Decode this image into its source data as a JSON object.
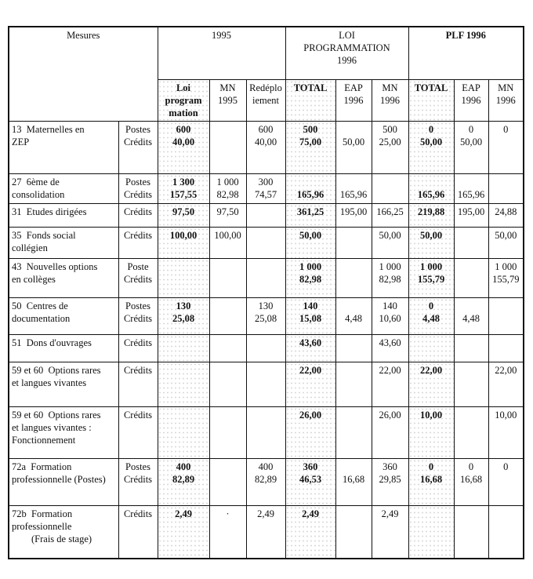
{
  "header": {
    "mesures": "Mesures",
    "group_1995": "1995",
    "group_loi": [
      "LOI",
      "PROGRAMMATION",
      "1996"
    ],
    "group_plf": "PLF 1996",
    "subcolumns": [
      {
        "lines": [
          "Loi",
          "program",
          "mation"
        ],
        "bold": true
      },
      {
        "lines": [
          "MN",
          "1995"
        ],
        "bold": false
      },
      {
        "lines": [
          "Redéplo",
          "iement"
        ],
        "bold": false
      },
      {
        "lines": [
          "TOTAL"
        ],
        "bold": true
      },
      {
        "lines": [
          "EAP",
          "1996"
        ],
        "bold": false
      },
      {
        "lines": [
          "MN",
          "1996"
        ],
        "bold": false
      },
      {
        "lines": [
          "TOTAL"
        ],
        "bold": true
      },
      {
        "lines": [
          "EAP",
          "1996"
        ],
        "bold": false
      },
      {
        "lines": [
          "MN",
          "1996"
        ],
        "bold": false
      }
    ]
  },
  "rows": [
    {
      "label": [
        "13  Maternelles en",
        "ZEP"
      ],
      "type": [
        "Postes",
        "Crédits"
      ],
      "cells": [
        [
          "600",
          "40,00"
        ],
        [],
        [
          "600",
          "40,00"
        ],
        [
          "500",
          "75,00"
        ],
        [
          "",
          "50,00"
        ],
        [
          "500",
          "25,00"
        ],
        [
          "0",
          "50,00"
        ],
        [
          "0",
          "50,00"
        ],
        [
          "0"
        ]
      ]
    },
    {
      "label": [
        "27  6ème de",
        "consolidation"
      ],
      "type": [
        "Postes",
        "Crédits"
      ],
      "cells": [
        [
          "1 300",
          "157,55"
        ],
        [
          "1 000",
          "82,98"
        ],
        [
          "300",
          "74,57"
        ],
        [
          "",
          "165,96"
        ],
        [
          "",
          "165,96"
        ],
        [],
        [
          "",
          "165,96"
        ],
        [
          "",
          "165,96"
        ],
        []
      ]
    },
    {
      "label": [
        "31  Etudes dirigées"
      ],
      "type": [
        "Crédits"
      ],
      "cells": [
        [
          "97,50"
        ],
        [
          "97,50"
        ],
        [],
        [
          "361,25"
        ],
        [
          "195,00"
        ],
        [
          "166,25"
        ],
        [
          "219,88"
        ],
        [
          "195,00"
        ],
        [
          "24,88"
        ]
      ]
    },
    {
      "label": [
        "35  Fonds social",
        "collégien"
      ],
      "type": [
        "Crédits"
      ],
      "cells": [
        [
          "100,00"
        ],
        [
          "100,00"
        ],
        [],
        [
          "50,00"
        ],
        [],
        [
          "50,00"
        ],
        [
          "50,00"
        ],
        [],
        [
          "50,00"
        ]
      ]
    },
    {
      "label": [
        "43  Nouvelles options",
        "en collèges"
      ],
      "type": [
        "Poste",
        "Crédits"
      ],
      "cells": [
        [],
        [],
        [],
        [
          "1 000",
          "82,98"
        ],
        [],
        [
          "1 000",
          "82,98"
        ],
        [
          "1 000",
          "155,79"
        ],
        [],
        [
          "1 000",
          "155,79"
        ]
      ]
    },
    {
      "label": [
        "50  Centres de",
        "documentation"
      ],
      "type": [
        "Postes",
        "Crédits"
      ],
      "cells": [
        [
          "130",
          "25,08"
        ],
        [],
        [
          "130",
          "25,08"
        ],
        [
          "140",
          "15,08"
        ],
        [
          "",
          "4,48"
        ],
        [
          "140",
          "10,60"
        ],
        [
          "0",
          "4,48"
        ],
        [
          "",
          "4,48"
        ],
        []
      ]
    },
    {
      "label": [
        "51  Dons d'ouvrages"
      ],
      "type": [
        "Crédits"
      ],
      "cells": [
        [],
        [],
        [],
        [
          "43,60"
        ],
        [],
        [
          "43,60"
        ],
        [],
        [],
        []
      ]
    },
    {
      "label": [
        "59 et 60  Options rares",
        "et langues vivantes"
      ],
      "type": [
        "Crédits"
      ],
      "cells": [
        [],
        [],
        [],
        [
          "22,00"
        ],
        [],
        [
          "22,00"
        ],
        [
          "22,00"
        ],
        [],
        [
          "22,00"
        ]
      ]
    },
    {
      "label": [
        "59 et 60  Options rares",
        "et langues vivantes :",
        "Fonctionnement"
      ],
      "type": [
        "Crédits"
      ],
      "cells": [
        [],
        [],
        [],
        [
          "26,00"
        ],
        [],
        [
          "26,00"
        ],
        [
          "10,00"
        ],
        [],
        [
          "10,00"
        ]
      ]
    },
    {
      "label": [
        "72a  Formation",
        "professionnelle (Postes)"
      ],
      "type": [
        "Postes",
        "Crédits"
      ],
      "cells": [
        [
          "400",
          "82,89"
        ],
        [],
        [
          "400",
          "82,89"
        ],
        [
          "360",
          "46,53"
        ],
        [
          "",
          "16,68"
        ],
        [
          "360",
          "29,85"
        ],
        [
          "0",
          "16,68"
        ],
        [
          "0",
          "16,68"
        ],
        [
          "0"
        ]
      ]
    },
    {
      "label": [
        "72b  Formation",
        "professionnelle",
        "        (Frais de stage)"
      ],
      "type": [
        "Crédits"
      ],
      "cells": [
        [
          "2,49"
        ],
        [
          "·"
        ],
        [
          "2,49"
        ],
        [
          "2,49"
        ],
        [],
        [
          "2,49"
        ],
        [],
        [],
        []
      ]
    }
  ]
}
